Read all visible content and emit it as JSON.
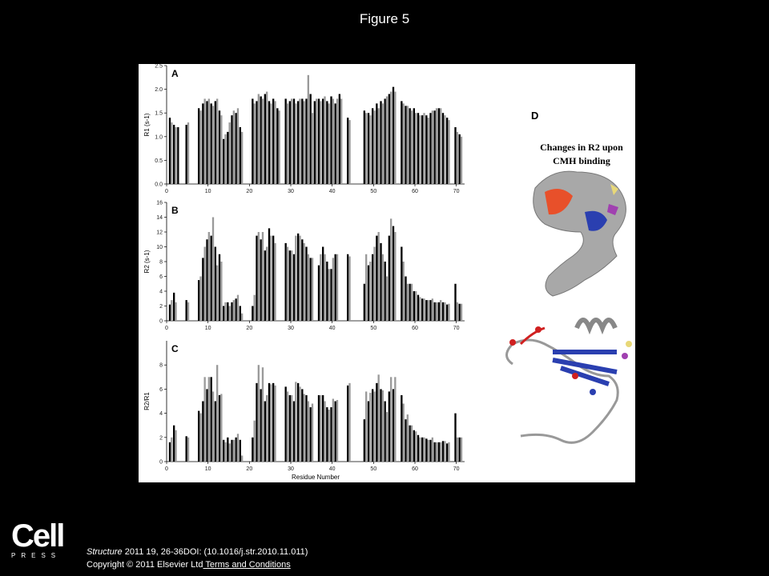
{
  "title": "Figure 5",
  "chart_data": [
    {
      "type": "bar",
      "panel": "A",
      "ylabel": "R1 (s-1)",
      "xlim": [
        0,
        72
      ],
      "xticks": [
        0,
        10,
        20,
        30,
        40,
        50,
        60,
        70
      ],
      "ylim": [
        0,
        2.5
      ],
      "yticks": [
        {
          "value": 0,
          "label": "0.0"
        },
        {
          "value": 0.5,
          "label": "0.5"
        },
        {
          "value": 1,
          "label": "1.0"
        },
        {
          "value": 1.5,
          "label": "1.5"
        },
        {
          "value": 2,
          "label": "2.0"
        },
        {
          "value": 2.5,
          "label": "2.5"
        }
      ],
      "x": [
        1,
        2,
        3,
        5,
        8,
        9,
        10,
        11,
        12,
        13,
        14,
        15,
        16,
        17,
        18,
        21,
        22,
        23,
        24,
        25,
        26,
        27,
        29,
        30,
        31,
        32,
        33,
        34,
        35,
        36,
        37,
        38,
        39,
        40,
        41,
        42,
        44,
        48,
        49,
        50,
        51,
        52,
        53,
        54,
        55,
        57,
        58,
        59,
        60,
        61,
        62,
        63,
        64,
        65,
        66,
        67,
        68,
        70,
        71
      ],
      "series": [
        {
          "color": "#000000",
          "values": [
            1.4,
            1.25,
            1.2,
            1.25,
            1.6,
            1.7,
            1.75,
            1.7,
            1.75,
            1.55,
            0.95,
            1.1,
            1.45,
            1.5,
            1.2,
            1.8,
            1.75,
            1.85,
            1.9,
            1.75,
            1.8,
            1.6,
            1.8,
            1.75,
            1.8,
            1.75,
            1.8,
            1.8,
            1.9,
            1.75,
            1.8,
            1.8,
            1.75,
            1.85,
            1.7,
            1.9,
            1.4,
            1.55,
            1.5,
            1.6,
            1.7,
            1.75,
            1.8,
            1.9,
            2.05,
            1.75,
            1.65,
            1.6,
            1.6,
            1.5,
            1.45,
            1.45,
            1.5,
            1.55,
            1.6,
            1.5,
            1.4,
            1.2,
            1.05
          ]
        },
        {
          "color": "#9a9a9a",
          "values": [
            1.3,
            1.2,
            null,
            1.3,
            1.55,
            1.8,
            1.8,
            1.65,
            1.8,
            1.45,
            1.05,
            1.3,
            1.55,
            1.6,
            1.1,
            1.7,
            1.9,
            1.8,
            1.95,
            1.7,
            1.75,
            1.55,
            1.7,
            1.8,
            1.7,
            1.8,
            1.75,
            2.3,
            1.5,
            1.8,
            1.75,
            1.85,
            1.7,
            1.8,
            1.8,
            1.8,
            1.35,
            1.5,
            1.45,
            1.55,
            1.6,
            1.7,
            1.85,
            1.95,
            1.95,
            1.7,
            1.65,
            1.55,
            1.5,
            1.45,
            1.5,
            1.4,
            1.55,
            1.6,
            1.6,
            1.45,
            1.35,
            1.1,
            1.0
          ]
        }
      ]
    },
    {
      "type": "bar",
      "panel": "B",
      "ylabel": "R2 (s-1)",
      "xlim": [
        0,
        72
      ],
      "xticks": [
        0,
        10,
        20,
        30,
        40,
        50,
        60,
        70
      ],
      "ylim": [
        0,
        16
      ],
      "yticks": [
        0,
        2,
        4,
        6,
        8,
        10,
        12,
        14,
        16
      ],
      "x": [
        1,
        2,
        3,
        5,
        8,
        9,
        10,
        11,
        12,
        13,
        14,
        15,
        16,
        17,
        18,
        21,
        22,
        23,
        24,
        25,
        26,
        27,
        29,
        30,
        31,
        32,
        33,
        34,
        35,
        36,
        37,
        38,
        39,
        40,
        41,
        42,
        44,
        48,
        49,
        50,
        51,
        52,
        53,
        54,
        55,
        57,
        58,
        59,
        60,
        61,
        62,
        63,
        64,
        65,
        66,
        67,
        68,
        70,
        71
      ],
      "series": [
        {
          "color": "#000000",
          "values": [
            2.2,
            3.8,
            null,
            2.8,
            5.5,
            8.5,
            11,
            11.5,
            10,
            9,
            2,
            2.5,
            2.5,
            3,
            2,
            2,
            11.5,
            11,
            9.5,
            12.5,
            11.5,
            null,
            10.5,
            9.5,
            9,
            11.8,
            11,
            10,
            8.5,
            null,
            7.5,
            10,
            8,
            7,
            9,
            null,
            9,
            5,
            7.5,
            9,
            11.5,
            10.5,
            8,
            11.5,
            12.8,
            10,
            6,
            5,
            4,
            3.5,
            3,
            2.8,
            2.8,
            2.5,
            2.5,
            2.5,
            2.2,
            5,
            2.3
          ]
        },
        {
          "color": "#9a9a9a",
          "values": [
            2.8,
            2.5,
            null,
            2.5,
            6,
            10,
            12,
            14,
            7.5,
            8,
            2.5,
            2,
            2.8,
            3.5,
            1,
            3.5,
            12,
            12,
            10,
            11.5,
            10.5,
            null,
            10,
            9.5,
            11.5,
            11.5,
            10.5,
            9,
            8.5,
            null,
            9,
            9,
            7,
            8.5,
            9,
            null,
            8.7,
            9,
            8,
            10,
            12,
            9,
            6,
            13.8,
            12,
            8,
            5,
            5,
            4,
            3.2,
            3,
            2.8,
            3,
            2.5,
            2.8,
            2.5,
            2.3,
            2.5,
            2.3
          ]
        }
      ]
    },
    {
      "type": "bar",
      "panel": "C",
      "ylabel": "R2/R1",
      "xlabel": "Residue Number",
      "xlim": [
        0,
        72
      ],
      "xticks": [
        0,
        10,
        20,
        30,
        40,
        50,
        60,
        70
      ],
      "ylim": [
        0,
        10
      ],
      "yticks": [
        0,
        2,
        4,
        6,
        8
      ],
      "x": [
        1,
        2,
        3,
        5,
        8,
        9,
        10,
        11,
        12,
        13,
        14,
        15,
        16,
        17,
        18,
        21,
        22,
        23,
        24,
        25,
        26,
        27,
        29,
        30,
        31,
        32,
        33,
        34,
        35,
        36,
        37,
        38,
        39,
        40,
        41,
        42,
        44,
        48,
        49,
        50,
        51,
        52,
        53,
        54,
        55,
        57,
        58,
        59,
        60,
        61,
        62,
        63,
        64,
        65,
        66,
        67,
        68,
        70,
        71
      ],
      "series": [
        {
          "color": "#000000",
          "values": [
            1.6,
            3,
            null,
            2.1,
            4.2,
            5,
            6,
            7,
            5,
            5.5,
            1.8,
            2,
            1.8,
            2,
            1.8,
            2,
            6.5,
            6,
            5,
            6.5,
            6.5,
            null,
            6.2,
            5.5,
            5,
            6.5,
            6,
            5.5,
            4.5,
            null,
            5.5,
            5.5,
            4.5,
            4.5,
            5,
            null,
            6.3,
            3.5,
            5,
            6,
            6.5,
            6,
            5,
            5.8,
            6,
            5.5,
            3.5,
            3,
            2.6,
            2.2,
            2,
            1.9,
            1.8,
            1.6,
            1.6,
            1.7,
            1.5,
            4,
            2
          ]
        },
        {
          "color": "#9a9a9a",
          "values": [
            2,
            2.6,
            null,
            2,
            4,
            7,
            7,
            5.8,
            8,
            5.6,
            1.6,
            1.5,
            1.8,
            2.3,
            0.5,
            3.4,
            8,
            7.8,
            5.5,
            6.4,
            6.3,
            null,
            5.8,
            5.5,
            6.6,
            6.2,
            5.6,
            5,
            4.8,
            null,
            5.5,
            5,
            4.3,
            5.2,
            5.1,
            null,
            6.5,
            5.8,
            5.7,
            5.8,
            7.2,
            5.9,
            4.1,
            7,
            7,
            4.8,
            3.9,
            3,
            2.5,
            2,
            2,
            1.8,
            2,
            1.6,
            1.6,
            1.7,
            1.6,
            2,
            2
          ]
        }
      ]
    }
  ],
  "panel_d": {
    "label": "D",
    "caption": [
      "Changes in R2 upon",
      "CMH binding"
    ]
  },
  "logo": {
    "name": "Cell",
    "sub": "PRESS"
  },
  "footer": {
    "journal": "Structure",
    "citation": " 2011 19, 26-36DOI: (10.1016/j.str.2010.11.011)",
    "copyright": "Copyright © 2011 Elsevier Ltd",
    "link": " Terms and Conditions"
  }
}
